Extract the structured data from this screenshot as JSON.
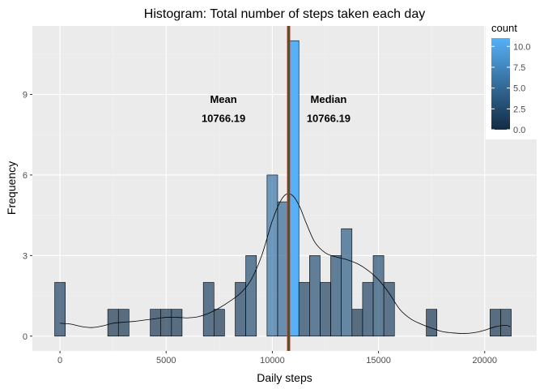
{
  "chart_data": {
    "type": "bar",
    "title": "Histogram: Total number of steps taken each day",
    "xlabel": "Daily steps",
    "ylabel": "Frequency",
    "xlim": [
      -1300,
      22450
    ],
    "ylim": [
      -0.55,
      11.55
    ],
    "x_ticks": [
      0,
      5000,
      10000,
      15000,
      20000
    ],
    "x_tick_labels": [
      "0",
      "5000",
      "10000",
      "15000",
      "20000"
    ],
    "y_ticks": [
      0,
      3,
      6,
      9
    ],
    "y_tick_labels": [
      "0",
      "3",
      "6",
      "9"
    ],
    "grid": true,
    "bin_width": 500,
    "bins": [
      {
        "x": 0,
        "count": 2
      },
      {
        "x": 2500,
        "count": 1
      },
      {
        "x": 3000,
        "count": 1
      },
      {
        "x": 4500,
        "count": 1
      },
      {
        "x": 5000,
        "count": 1
      },
      {
        "x": 5500,
        "count": 1
      },
      {
        "x": 7000,
        "count": 2
      },
      {
        "x": 7500,
        "count": 1
      },
      {
        "x": 8500,
        "count": 2
      },
      {
        "x": 9000,
        "count": 3
      },
      {
        "x": 10000,
        "count": 6
      },
      {
        "x": 10500,
        "count": 5
      },
      {
        "x": 11000,
        "count": 11
      },
      {
        "x": 11500,
        "count": 2
      },
      {
        "x": 12000,
        "count": 3
      },
      {
        "x": 12500,
        "count": 2
      },
      {
        "x": 13000,
        "count": 3
      },
      {
        "x": 13500,
        "count": 4
      },
      {
        "x": 14000,
        "count": 1
      },
      {
        "x": 14500,
        "count": 2
      },
      {
        "x": 15000,
        "count": 3
      },
      {
        "x": 15500,
        "count": 2
      },
      {
        "x": 17500,
        "count": 1
      },
      {
        "x": 20500,
        "count": 1
      },
      {
        "x": 21000,
        "count": 1
      }
    ],
    "density_curve": [
      [
        0,
        0.48
      ],
      [
        500,
        0.45
      ],
      [
        1000,
        0.36
      ],
      [
        1500,
        0.32
      ],
      [
        2000,
        0.38
      ],
      [
        2500,
        0.48
      ],
      [
        3000,
        0.52
      ],
      [
        3500,
        0.55
      ],
      [
        4000,
        0.6
      ],
      [
        4500,
        0.65
      ],
      [
        5000,
        0.7
      ],
      [
        5500,
        0.7
      ],
      [
        6000,
        0.68
      ],
      [
        6500,
        0.72
      ],
      [
        7000,
        0.85
      ],
      [
        7500,
        1.05
      ],
      [
        8000,
        1.3
      ],
      [
        8500,
        1.6
      ],
      [
        9000,
        2.1
      ],
      [
        9500,
        3.0
      ],
      [
        10000,
        4.3
      ],
      [
        10400,
        5.05
      ],
      [
        10700,
        5.3
      ],
      [
        11000,
        5.2
      ],
      [
        11300,
        4.8
      ],
      [
        11600,
        4.2
      ],
      [
        12000,
        3.5
      ],
      [
        12500,
        3.1
      ],
      [
        13000,
        2.95
      ],
      [
        13500,
        2.85
      ],
      [
        14000,
        2.7
      ],
      [
        14500,
        2.45
      ],
      [
        15000,
        2.1
      ],
      [
        15500,
        1.6
      ],
      [
        16000,
        1.0
      ],
      [
        16500,
        0.65
      ],
      [
        17000,
        0.45
      ],
      [
        17500,
        0.3
      ],
      [
        18000,
        0.17
      ],
      [
        18500,
        0.12
      ],
      [
        19000,
        0.1
      ],
      [
        19500,
        0.13
      ],
      [
        20000,
        0.22
      ],
      [
        20500,
        0.35
      ],
      [
        21000,
        0.4
      ],
      [
        21200,
        0.35
      ]
    ],
    "mean_line": 10766.19,
    "median_line": 10766.19,
    "annotations": [
      {
        "label": "Mean",
        "value": "10766.19",
        "x": 7700,
        "y_label": 8.8,
        "y_value": 8.1
      },
      {
        "label": "Median",
        "value": "10766.19",
        "x": 12650,
        "y_label": 8.8,
        "y_value": 8.1
      }
    ],
    "legend": {
      "title": "count",
      "position": "top-right",
      "min": 0.0,
      "max": 11.0,
      "ticks": [
        0.0,
        2.5,
        5.0,
        7.5,
        10.0
      ],
      "tick_labels": [
        "0.0",
        "2.5",
        "5.0",
        "7.5",
        "10.0"
      ]
    },
    "colors": {
      "panel_background": "#ebebeb",
      "grid_major": "#ffffff",
      "grid_minor": "#f2f2f2",
      "low": "#132B43",
      "high": "#56B1F7",
      "bar_alpha": 0.7,
      "bar_border": "#000000",
      "mean_line": "#cc4444",
      "median_line": "#4a5a1c",
      "density_line": "#000000"
    }
  }
}
